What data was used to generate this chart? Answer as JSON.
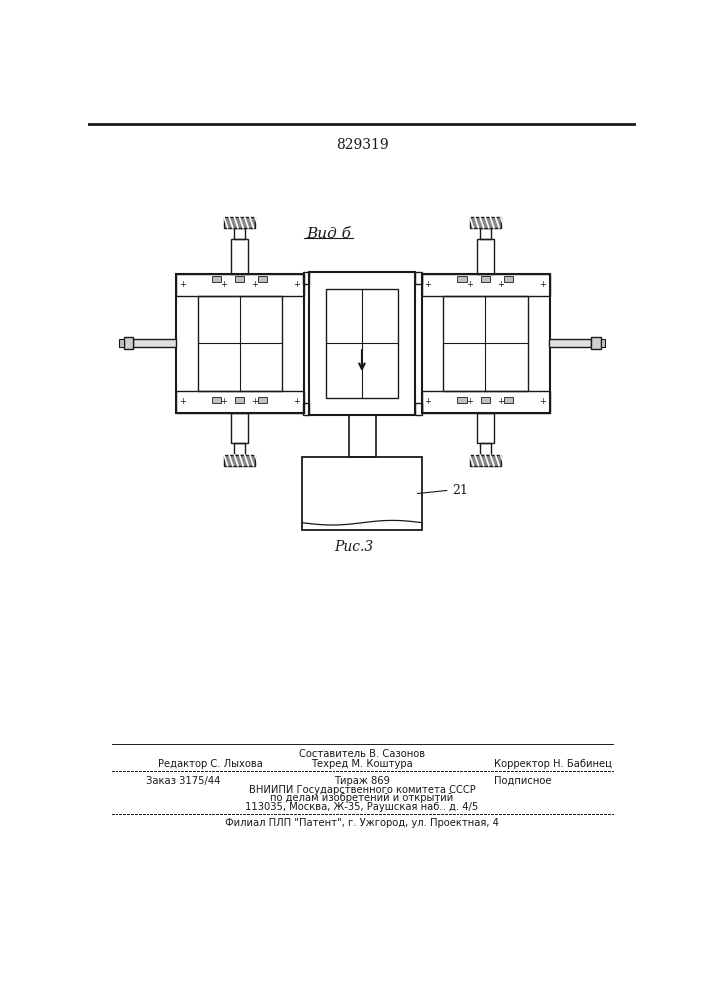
{
  "patent_number": "829319",
  "fig_label": "Вид б",
  "fig_number": "Рис.3",
  "label_21": "21",
  "footer_line0_center": "Составитель В. Сазонов",
  "footer_line1_left": "Редактор С. Лыхова",
  "footer_line1_center": "Техред М. Коштура",
  "footer_line1_right": "Корректор Н. Бабинец",
  "footer_line2_left": "Заказ 3175/44",
  "footer_line2_center": "Тираж 869",
  "footer_line2_right": "Подписное",
  "footer_line3": "ВНИИПИ Государственного комитета СССР",
  "footer_line4": "по делам изобретений и открытий",
  "footer_line5": "113035, Москва, Ж-35, Раушская наб.. д. 4/5",
  "footer_line6": "Филиал ПЛП \"Патент\", г. Ужгород, ул. Проектная, 4",
  "bg_color": "#ffffff",
  "line_color": "#1a1a1a",
  "drawing_color": "#1a1a1a"
}
